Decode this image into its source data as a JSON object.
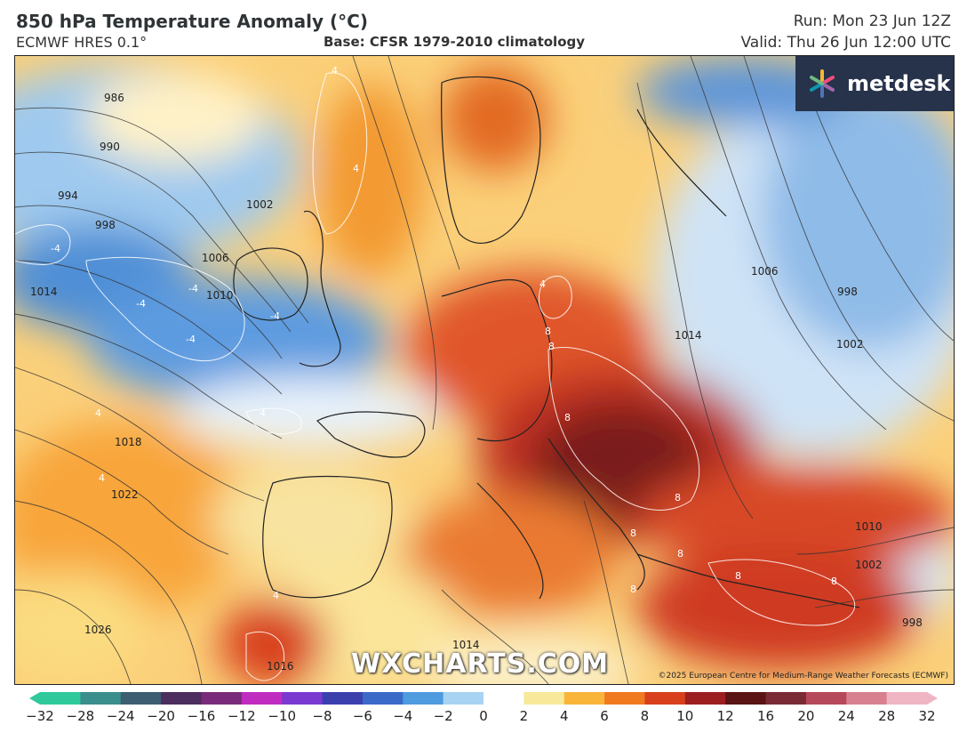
{
  "header": {
    "title": "850 hPa Temperature Anomaly (°C)",
    "model": "ECMWF HRES 0.1°",
    "base": "Base: CFSR 1979-2010 climatology",
    "run": "Run: Mon 23 Jun 12Z",
    "valid": "Valid: Thu 26 Jun 12:00 UTC"
  },
  "brand": {
    "logo_text": "metdesk",
    "watermark": "WXCHARTS.COM",
    "credit": "©2025 European Centre for Medium-Range Weather Forecasts (ECMWF)"
  },
  "map": {
    "isobar_labels": [
      "986",
      "990",
      "994",
      "998",
      "1002",
      "1006",
      "1010",
      "1014",
      "1018",
      "1022",
      "1026",
      "1016",
      "1006",
      "998",
      "1002",
      "1014",
      "1010",
      "1002",
      "998",
      "1014"
    ],
    "anomaly_contour_labels": [
      "-4",
      "-4",
      "-4",
      "-4",
      "-4",
      "4",
      "4",
      "4",
      "4",
      "4",
      "4",
      "4",
      "8",
      "8",
      "8",
      "8",
      "8",
      "8",
      "8",
      "8",
      "8"
    ]
  },
  "colorbar": {
    "ticks": [
      "−32",
      "−28",
      "−24",
      "−20",
      "−16",
      "−12",
      "−10",
      "−8",
      "−6",
      "−4",
      "−2",
      "0",
      "2",
      "4",
      "6",
      "8",
      "10",
      "12",
      "16",
      "20",
      "24",
      "28",
      "32"
    ],
    "colors": [
      "#2fc99b",
      "#3a8f8c",
      "#3c5d72",
      "#4b2d5e",
      "#7a2a7a",
      "#c02cc0",
      "#7a3ad0",
      "#3b3fae",
      "#3a69c8",
      "#4e9be0",
      "#a9d3f2",
      "#ffffff",
      "#f8e99a",
      "#f9b53a",
      "#f07a20",
      "#d8401b",
      "#9c1f1f",
      "#5a1414",
      "#7a2a34",
      "#b5485a",
      "#d8808f",
      "#f0b5c3"
    ]
  }
}
